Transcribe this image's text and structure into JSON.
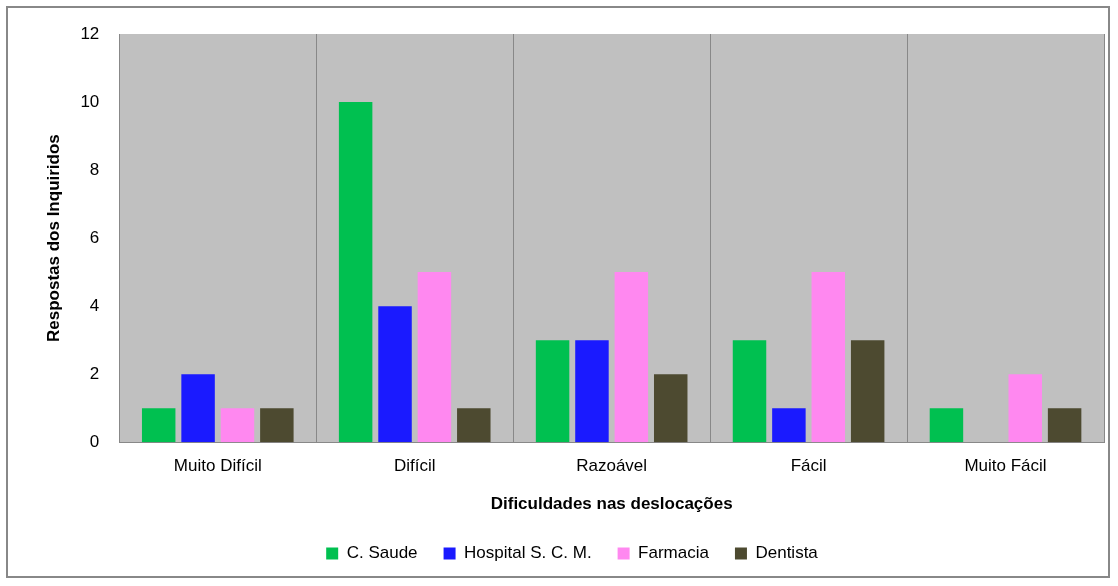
{
  "chart_data": {
    "type": "bar",
    "xlabel": "Dificuldades nas deslocações",
    "ylabel": "Respostas dos Inquiridos",
    "categories": [
      "Muito Difícil",
      "Difícil",
      "Razoável",
      "Fácil",
      "Muito Fácil"
    ],
    "series": [
      {
        "name": "C. Saude",
        "color": "#00c050",
        "values": [
          1,
          10,
          3,
          3,
          1
        ]
      },
      {
        "name": "Hospital S. C. M.",
        "color": "#1a1aff",
        "values": [
          2,
          4,
          3,
          1,
          0
        ]
      },
      {
        "name": "Farmacia",
        "color": "#ff88f0",
        "values": [
          1,
          5,
          5,
          5,
          2
        ]
      },
      {
        "name": "Dentista",
        "color": "#4d4a30",
        "values": [
          1,
          1,
          2,
          3,
          1
        ]
      }
    ],
    "ylim": [
      0,
      12
    ],
    "yticks": [
      0,
      2,
      4,
      6,
      8,
      10,
      12
    ],
    "grid": "x",
    "legend": "bottom"
  }
}
